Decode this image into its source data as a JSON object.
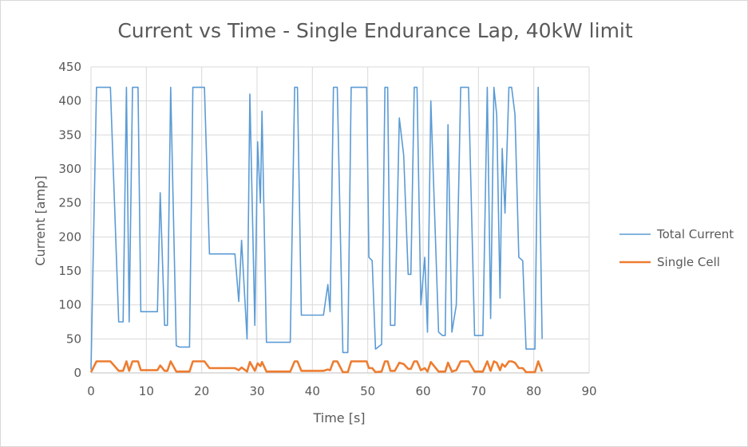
{
  "chart_data": {
    "type": "line",
    "title": "Current vs Time - Single Endurance Lap, 40kW limit",
    "xlabel": "Time [s]",
    "ylabel": "Current [amp]",
    "xlim": [
      0,
      90
    ],
    "ylim": [
      0,
      450
    ],
    "x_ticks": [
      "0",
      "10",
      "20",
      "30",
      "40",
      "50",
      "60",
      "70",
      "80",
      "90"
    ],
    "y_ticks": [
      "0",
      "50",
      "100",
      "150",
      "200",
      "250",
      "300",
      "350",
      "400",
      "450"
    ],
    "grid": true,
    "legend_position": "right",
    "series": [
      {
        "name": "Total Current",
        "color": "#5b9bd5",
        "points": [
          [
            0,
            5
          ],
          [
            1,
            420
          ],
          [
            3.5,
            420
          ],
          [
            5,
            75
          ],
          [
            5.8,
            75
          ],
          [
            6.4,
            420
          ],
          [
            6.9,
            75
          ],
          [
            7.5,
            420
          ],
          [
            8.5,
            420
          ],
          [
            9,
            90
          ],
          [
            12,
            90
          ],
          [
            12.5,
            265
          ],
          [
            13.3,
            70
          ],
          [
            13.8,
            70
          ],
          [
            14.4,
            420
          ],
          [
            15.4,
            40
          ],
          [
            16,
            38
          ],
          [
            17.8,
            38
          ],
          [
            18.4,
            420
          ],
          [
            20.5,
            420
          ],
          [
            21.4,
            175
          ],
          [
            26,
            175
          ],
          [
            26.7,
            105
          ],
          [
            27.2,
            195
          ],
          [
            28.2,
            50
          ],
          [
            28.7,
            410
          ],
          [
            29.6,
            70
          ],
          [
            30.1,
            340
          ],
          [
            30.6,
            250
          ],
          [
            30.9,
            385
          ],
          [
            31.7,
            45
          ],
          [
            36,
            45
          ],
          [
            36.8,
            420
          ],
          [
            37.3,
            420
          ],
          [
            38,
            85
          ],
          [
            42,
            85
          ],
          [
            42.8,
            130
          ],
          [
            43.2,
            90
          ],
          [
            43.8,
            420
          ],
          [
            44.5,
            420
          ],
          [
            45.5,
            30
          ],
          [
            46.4,
            30
          ],
          [
            47,
            420
          ],
          [
            49.8,
            420
          ],
          [
            50.2,
            170
          ],
          [
            50.8,
            165
          ],
          [
            51.4,
            35
          ],
          [
            52.5,
            42
          ],
          [
            53.1,
            420
          ],
          [
            53.6,
            420
          ],
          [
            54.1,
            70
          ],
          [
            54.9,
            70
          ],
          [
            55.7,
            375
          ],
          [
            56.5,
            320
          ],
          [
            57.3,
            145
          ],
          [
            57.8,
            145
          ],
          [
            58.4,
            420
          ],
          [
            58.9,
            420
          ],
          [
            59.6,
            100
          ],
          [
            60.3,
            170
          ],
          [
            60.8,
            60
          ],
          [
            61.4,
            400
          ],
          [
            62.8,
            60
          ],
          [
            63.5,
            55
          ],
          [
            64,
            55
          ],
          [
            64.5,
            365
          ],
          [
            65.2,
            60
          ],
          [
            66,
            100
          ],
          [
            66.8,
            420
          ],
          [
            68.2,
            420
          ],
          [
            69.3,
            55
          ],
          [
            70.8,
            55
          ],
          [
            71.6,
            420
          ],
          [
            72.2,
            80
          ],
          [
            72.8,
            420
          ],
          [
            73.3,
            380
          ],
          [
            73.9,
            110
          ],
          [
            74.3,
            330
          ],
          [
            74.8,
            235
          ],
          [
            75.5,
            420
          ],
          [
            76,
            420
          ],
          [
            76.6,
            380
          ],
          [
            77.3,
            170
          ],
          [
            78,
            165
          ],
          [
            78.6,
            35
          ],
          [
            80.2,
            35
          ],
          [
            80.8,
            420
          ],
          [
            81.5,
            50
          ]
        ]
      },
      {
        "name": "Single Cell",
        "color": "#ed7d31",
        "points": [
          [
            0,
            1
          ],
          [
            1,
            17
          ],
          [
            3.5,
            17
          ],
          [
            5,
            3
          ],
          [
            5.8,
            3
          ],
          [
            6.4,
            17
          ],
          [
            6.9,
            3
          ],
          [
            7.5,
            17
          ],
          [
            8.5,
            17
          ],
          [
            9,
            4
          ],
          [
            12,
            4
          ],
          [
            12.5,
            11
          ],
          [
            13.3,
            3
          ],
          [
            13.8,
            3
          ],
          [
            14.4,
            17
          ],
          [
            15.4,
            2
          ],
          [
            17.8,
            2
          ],
          [
            18.4,
            17
          ],
          [
            20.5,
            17
          ],
          [
            21.4,
            7
          ],
          [
            26,
            7
          ],
          [
            26.7,
            4
          ],
          [
            27.2,
            8
          ],
          [
            28.2,
            2
          ],
          [
            28.7,
            16
          ],
          [
            29.6,
            3
          ],
          [
            30.1,
            14
          ],
          [
            30.6,
            10
          ],
          [
            30.9,
            16
          ],
          [
            31.7,
            2
          ],
          [
            36,
            2
          ],
          [
            36.8,
            17
          ],
          [
            37.3,
            17
          ],
          [
            38,
            3
          ],
          [
            42,
            3
          ],
          [
            42.8,
            5
          ],
          [
            43.2,
            4
          ],
          [
            43.8,
            17
          ],
          [
            44.5,
            17
          ],
          [
            45.5,
            1
          ],
          [
            46.4,
            1
          ],
          [
            47,
            17
          ],
          [
            49.8,
            17
          ],
          [
            50.2,
            7
          ],
          [
            50.8,
            7
          ],
          [
            51.4,
            1
          ],
          [
            52.5,
            2
          ],
          [
            53.1,
            17
          ],
          [
            53.6,
            17
          ],
          [
            54.1,
            3
          ],
          [
            54.9,
            3
          ],
          [
            55.7,
            15
          ],
          [
            56.5,
            13
          ],
          [
            57.3,
            6
          ],
          [
            57.8,
            6
          ],
          [
            58.4,
            17
          ],
          [
            58.9,
            17
          ],
          [
            59.6,
            4
          ],
          [
            60.3,
            7
          ],
          [
            60.8,
            2
          ],
          [
            61.4,
            16
          ],
          [
            62.8,
            2
          ],
          [
            64,
            2
          ],
          [
            64.5,
            15
          ],
          [
            65.2,
            2
          ],
          [
            66,
            4
          ],
          [
            66.8,
            17
          ],
          [
            68.2,
            17
          ],
          [
            69.3,
            2
          ],
          [
            70.8,
            2
          ],
          [
            71.6,
            17
          ],
          [
            72.2,
            3
          ],
          [
            72.8,
            17
          ],
          [
            73.3,
            15
          ],
          [
            73.9,
            4
          ],
          [
            74.3,
            13
          ],
          [
            74.8,
            9
          ],
          [
            75.5,
            17
          ],
          [
            76,
            17
          ],
          [
            76.6,
            15
          ],
          [
            77.3,
            7
          ],
          [
            78,
            7
          ],
          [
            78.6,
            1
          ],
          [
            80.2,
            1
          ],
          [
            80.8,
            17
          ],
          [
            81.5,
            2
          ]
        ]
      }
    ]
  }
}
